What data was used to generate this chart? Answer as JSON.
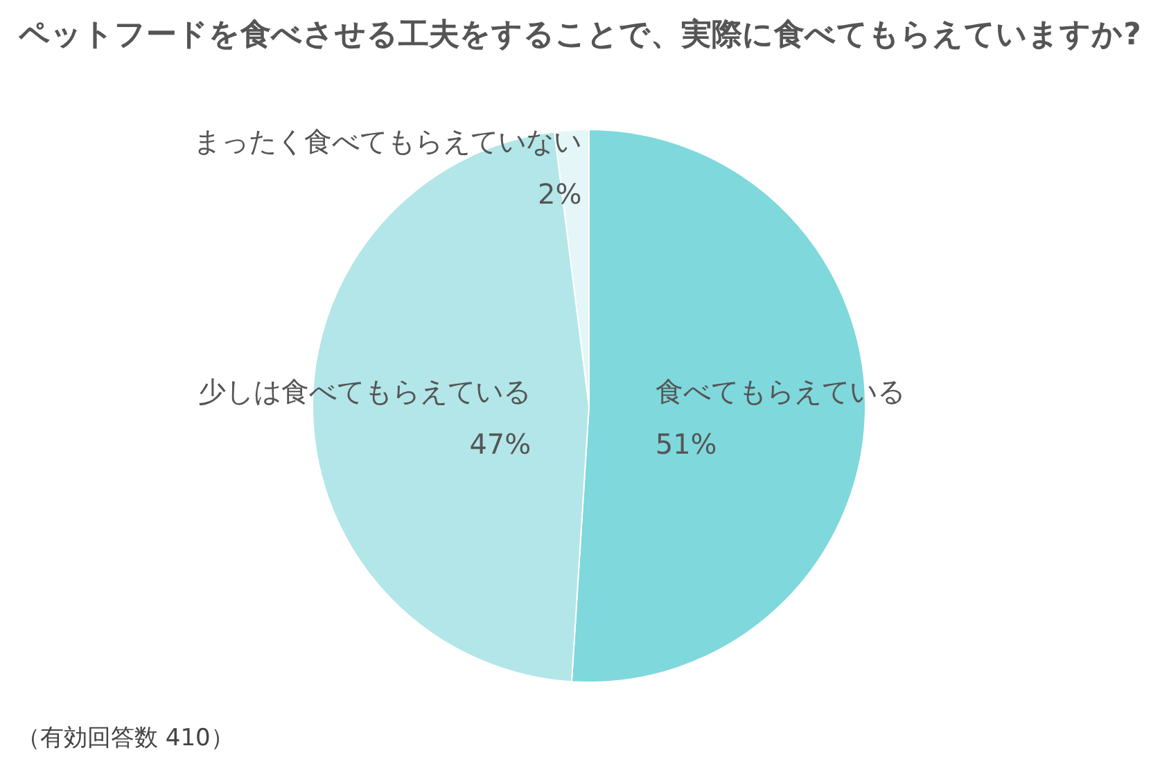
{
  "chart_data": {
    "type": "pie",
    "title": "ペットフードを食べさせる工夫をすることで、実際に食べてもらえていますか?",
    "categories": [
      "食べてもらえている",
      "少しは食べてもらえている",
      "まったく食べてもらえていない"
    ],
    "values": [
      51,
      47,
      2
    ],
    "colors": [
      "#7fd8dc",
      "#b3e6e8",
      "#e4f6f7"
    ],
    "value_labels": [
      "51%",
      "47%",
      "2%"
    ],
    "annotations": [
      "（有効回答数 410）"
    ]
  }
}
